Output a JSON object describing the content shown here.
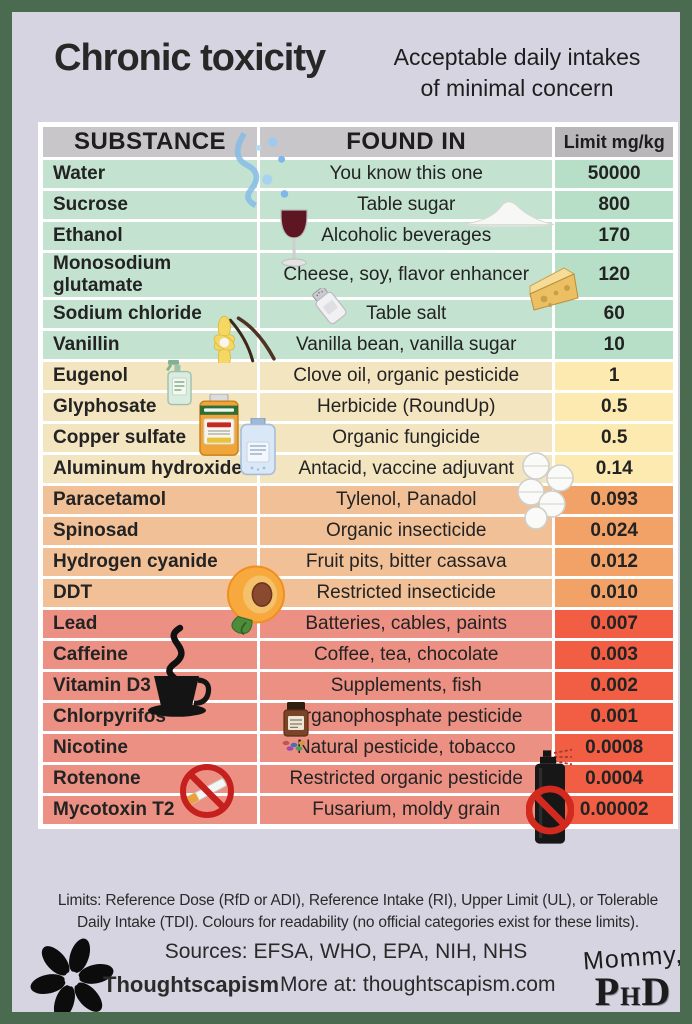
{
  "page": {
    "title": "Chronic toxicity",
    "subtitle_line1": "Acceptable daily intakes",
    "subtitle_line2": "of minimal concern"
  },
  "table": {
    "headers": {
      "substance": "SUBSTANCE",
      "found_in": "FOUND IN",
      "limit": "Limit mg/kg"
    },
    "rows": [
      {
        "substance": "Water",
        "found_in": "You know this one",
        "limit": "50000",
        "band": "green"
      },
      {
        "substance": "Sucrose",
        "found_in": "Table sugar",
        "limit": "800",
        "band": "green"
      },
      {
        "substance": "Ethanol",
        "found_in": "Alcoholic beverages",
        "limit": "170",
        "band": "green"
      },
      {
        "substance": "Monosodium glutamate",
        "found_in": "Cheese, soy, flavor enhancer",
        "limit": "120",
        "band": "green"
      },
      {
        "substance": "Sodium chloride",
        "found_in": "Table salt",
        "limit": "60",
        "band": "green"
      },
      {
        "substance": "Vanillin",
        "found_in": "Vanilla bean, vanilla sugar",
        "limit": "10",
        "band": "green"
      },
      {
        "substance": "Eugenol",
        "found_in": "Clove oil, organic pesticide",
        "limit": "1",
        "band": "yellow"
      },
      {
        "substance": "Glyphosate",
        "found_in": "Herbicide (RoundUp)",
        "limit": "0.5",
        "band": "yellow"
      },
      {
        "substance": "Copper sulfate",
        "found_in": "Organic fungicide",
        "limit": "0.5",
        "band": "yellow"
      },
      {
        "substance": "Aluminum hydroxide",
        "found_in": "Antacid, vaccine adjuvant",
        "limit": "0.14",
        "band": "yellow"
      },
      {
        "substance": "Paracetamol",
        "found_in": "Tylenol, Panadol",
        "limit": "0.093",
        "band": "orange"
      },
      {
        "substance": "Spinosad",
        "found_in": "Organic insecticide",
        "limit": "0.024",
        "band": "orange"
      },
      {
        "substance": "Hydrogen cyanide",
        "found_in": "Fruit pits, bitter cassava",
        "limit": "0.012",
        "band": "orange"
      },
      {
        "substance": "DDT",
        "found_in": "Restricted insecticide",
        "limit": "0.010",
        "band": "orange"
      },
      {
        "substance": "Lead",
        "found_in": "Batteries, cables, paints",
        "limit": "0.007",
        "band": "red"
      },
      {
        "substance": "Caffeine",
        "found_in": "Coffee, tea, chocolate",
        "limit": "0.003",
        "band": "red"
      },
      {
        "substance": "Vitamin D3",
        "found_in": "Supplements, fish",
        "limit": "0.002",
        "band": "red"
      },
      {
        "substance": "Chlorpyrifos",
        "found_in": "Organophosphate pesticide",
        "limit": "0.001",
        "band": "red"
      },
      {
        "substance": "Nicotine",
        "found_in": "Natural pesticide, tobacco",
        "limit": "0.0008",
        "band": "red"
      },
      {
        "substance": "Rotenone",
        "found_in": "Restricted organic pesticide",
        "limit": "0.0004",
        "band": "red"
      },
      {
        "substance": "Mycotoxin T2",
        "found_in": "Fusarium, moldy grain",
        "limit": "0.00002",
        "band": "red"
      }
    ]
  },
  "chart_data": {
    "type": "table",
    "title": "Chronic toxicity — Acceptable daily intakes of minimal concern",
    "columns": [
      "SUBSTANCE",
      "FOUND IN",
      "Limit mg/kg"
    ],
    "rows": [
      [
        "Water",
        "You know this one",
        "50000"
      ],
      [
        "Sucrose",
        "Table sugar",
        "800"
      ],
      [
        "Ethanol",
        "Alcoholic beverages",
        "170"
      ],
      [
        "Monosodium glutamate",
        "Cheese, soy, flavor enhancer",
        "120"
      ],
      [
        "Sodium chloride",
        "Table salt",
        "60"
      ],
      [
        "Vanillin",
        "Vanilla bean, vanilla sugar",
        "10"
      ],
      [
        "Eugenol",
        "Clove oil, organic pesticide",
        "1"
      ],
      [
        "Glyphosate",
        "Herbicide (RoundUp)",
        "0.5"
      ],
      [
        "Copper sulfate",
        "Organic fungicide",
        "0.5"
      ],
      [
        "Aluminum hydroxide",
        "Antacid, vaccine adjuvant",
        "0.14"
      ],
      [
        "Paracetamol",
        "Tylenol, Panadol",
        "0.093"
      ],
      [
        "Spinosad",
        "Organic insecticide",
        "0.024"
      ],
      [
        "Hydrogen cyanide",
        "Fruit pits, bitter cassava",
        "0.012"
      ],
      [
        "DDT",
        "Restricted insecticide",
        "0.010"
      ],
      [
        "Lead",
        "Batteries, cables, paints",
        "0.007"
      ],
      [
        "Caffeine",
        "Coffee, tea, chocolate",
        "0.003"
      ],
      [
        "Vitamin D3",
        "Supplements, fish",
        "0.002"
      ],
      [
        "Chlorpyrifos",
        "Organophosphate pesticide",
        "0.001"
      ],
      [
        "Nicotine",
        "Natural pesticide, tobacco",
        "0.0008"
      ],
      [
        "Rotenone",
        "Restricted organic pesticide",
        "0.0004"
      ],
      [
        "Mycotoxin T2",
        "Fusarium, moldy grain",
        "0.00002"
      ]
    ]
  },
  "footer": {
    "note_line1": "Limits: Reference Dose (RfD or ADI), Reference Intake (RI), Upper Limit (UL), or Tolerable",
    "note_line2": "Daily Intake (TDI). Colours for readability (no official categories exist for these limits).",
    "sources": "Sources: EFSA, WHO, EPA, NIH, NHS",
    "brand": "Thoughtscapism",
    "more_at": "More at: thoughtscapism.com",
    "mommy": "Mommy,",
    "phd_p": "P",
    "phd_h": "H",
    "phd_d": "D"
  },
  "colors": {
    "page_background": "#d7d4e1",
    "border_green": "#4a6b50",
    "header_gray": "#c8c6c9",
    "header_gray_dark": "#b9b7ba",
    "band_green": "#c3e2cf",
    "band_green_limit": "#b7dfc8",
    "band_yellow": "#f4e5c1",
    "band_yellow_limit": "#fdeab0",
    "band_orange": "#f1c097",
    "band_orange_limit": "#f2a167",
    "band_red": "#ec9083",
    "band_red_limit": "#f15e43",
    "gridline_white": "#ffffff"
  },
  "icons": {
    "water-splash-icon": "blue splash blobs",
    "sugar-pile-icon": "white sugar mound",
    "wine-glass-icon": "red wine glass",
    "cheese-wedge-icon": "yellow cheese wedge",
    "salt-shaker-icon": "tilted salt shaker",
    "vanilla-flower-icon": "vanilla flower with pods",
    "spray-bottle-icon": "green cleaner spray bottle",
    "roundup-bottle-icon": "RoundUp herbicide bottle",
    "fungicide-jug-icon": "blue liquid jug",
    "pills-icon": "white antacid tablets",
    "peach-icon": "halved peach with pit",
    "coffee-cup-icon": "black coffee cup with steam",
    "supplement-bottle-icon": "brown supplement bottle with pills",
    "no-smoking-icon": "red prohibition sign over cigarette",
    "banned-spray-can-icon": "black spray can with red prohibition circle",
    "flower-logo-icon": "black six-petal Thoughtscapism flower logo"
  }
}
